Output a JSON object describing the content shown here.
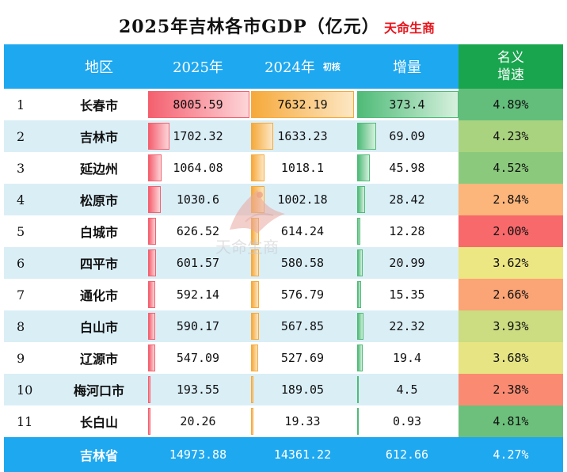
{
  "title": "2025年吉林各市GDP（亿元）",
  "brand": "天命生商",
  "headers": {
    "region": "地区",
    "y2025": "2025年",
    "y2024": "2024年",
    "y2024_note": "初核",
    "increase": "增量",
    "growth_line1": "名义",
    "growth_line2": "增速"
  },
  "watermark": "天命生商",
  "colors": {
    "header_bg": "#1ea8f0",
    "growth_header_bg": "#19a54e",
    "bar_2025": "#f4606f",
    "bar_2024": "#f6a93b",
    "bar_increase": "#4fbb78"
  },
  "chart_data": {
    "type": "table",
    "title": "2025年吉林各市GDP（亿元）",
    "columns": [
      "",
      "地区",
      "2025年",
      "2024年 初核",
      "增量",
      "名义增速"
    ],
    "rows": [
      {
        "rank": "1",
        "region": "长春市",
        "gdp2025": 8005.59,
        "gdp2025_text": "8005.59",
        "gdp2024": 7632.19,
        "gdp2024_text": "7632.19",
        "increase": 373.4,
        "increase_text": "373.4",
        "growth": 4.89,
        "growth_text": "4.89%"
      },
      {
        "rank": "2",
        "region": "吉林市",
        "gdp2025": 1702.32,
        "gdp2025_text": "1702.32",
        "gdp2024": 1633.23,
        "gdp2024_text": "1633.23",
        "increase": 69.09,
        "increase_text": "69.09",
        "growth": 4.23,
        "growth_text": "4.23%"
      },
      {
        "rank": "3",
        "region": "延边州",
        "gdp2025": 1064.08,
        "gdp2025_text": "1064.08",
        "gdp2024": 1018.1,
        "gdp2024_text": "1018.1",
        "increase": 45.98,
        "increase_text": "45.98",
        "growth": 4.52,
        "growth_text": "4.52%"
      },
      {
        "rank": "4",
        "region": "松原市",
        "gdp2025": 1030.6,
        "gdp2025_text": "1030.6",
        "gdp2024": 1002.18,
        "gdp2024_text": "1002.18",
        "increase": 28.42,
        "increase_text": "28.42",
        "growth": 2.84,
        "growth_text": "2.84%"
      },
      {
        "rank": "5",
        "region": "白城市",
        "gdp2025": 626.52,
        "gdp2025_text": "626.52",
        "gdp2024": 614.24,
        "gdp2024_text": "614.24",
        "increase": 12.28,
        "increase_text": "12.28",
        "growth": 2.0,
        "growth_text": "2.00%"
      },
      {
        "rank": "6",
        "region": "四平市",
        "gdp2025": 601.57,
        "gdp2025_text": "601.57",
        "gdp2024": 580.58,
        "gdp2024_text": "580.58",
        "increase": 20.99,
        "increase_text": "20.99",
        "growth": 3.62,
        "growth_text": "3.62%"
      },
      {
        "rank": "7",
        "region": "通化市",
        "gdp2025": 592.14,
        "gdp2025_text": "592.14",
        "gdp2024": 576.79,
        "gdp2024_text": "576.79",
        "increase": 15.35,
        "increase_text": "15.35",
        "growth": 2.66,
        "growth_text": "2.66%"
      },
      {
        "rank": "8",
        "region": "白山市",
        "gdp2025": 590.17,
        "gdp2025_text": "590.17",
        "gdp2024": 567.85,
        "gdp2024_text": "567.85",
        "increase": 22.32,
        "increase_text": "22.32",
        "growth": 3.93,
        "growth_text": "3.93%"
      },
      {
        "rank": "9",
        "region": "辽源市",
        "gdp2025": 547.09,
        "gdp2025_text": "547.09",
        "gdp2024": 527.69,
        "gdp2024_text": "527.69",
        "increase": 19.4,
        "increase_text": "19.4",
        "growth": 3.68,
        "growth_text": "3.68%"
      },
      {
        "rank": "10",
        "region": "梅河口市",
        "gdp2025": 193.55,
        "gdp2025_text": "193.55",
        "gdp2024": 189.05,
        "gdp2024_text": "189.05",
        "increase": 4.5,
        "increase_text": "4.5",
        "growth": 2.38,
        "growth_text": "2.38%"
      },
      {
        "rank": "11",
        "region": "长白山",
        "gdp2025": 20.26,
        "gdp2025_text": "20.26",
        "gdp2024": 19.33,
        "gdp2024_text": "19.33",
        "increase": 0.93,
        "increase_text": "0.93",
        "growth": 4.81,
        "growth_text": "4.81%"
      }
    ],
    "total": {
      "region": "吉林省",
      "gdp2025_text": "14973.88",
      "gdp2024_text": "14361.22",
      "increase_text": "612.66",
      "growth_text": "4.27%"
    }
  }
}
